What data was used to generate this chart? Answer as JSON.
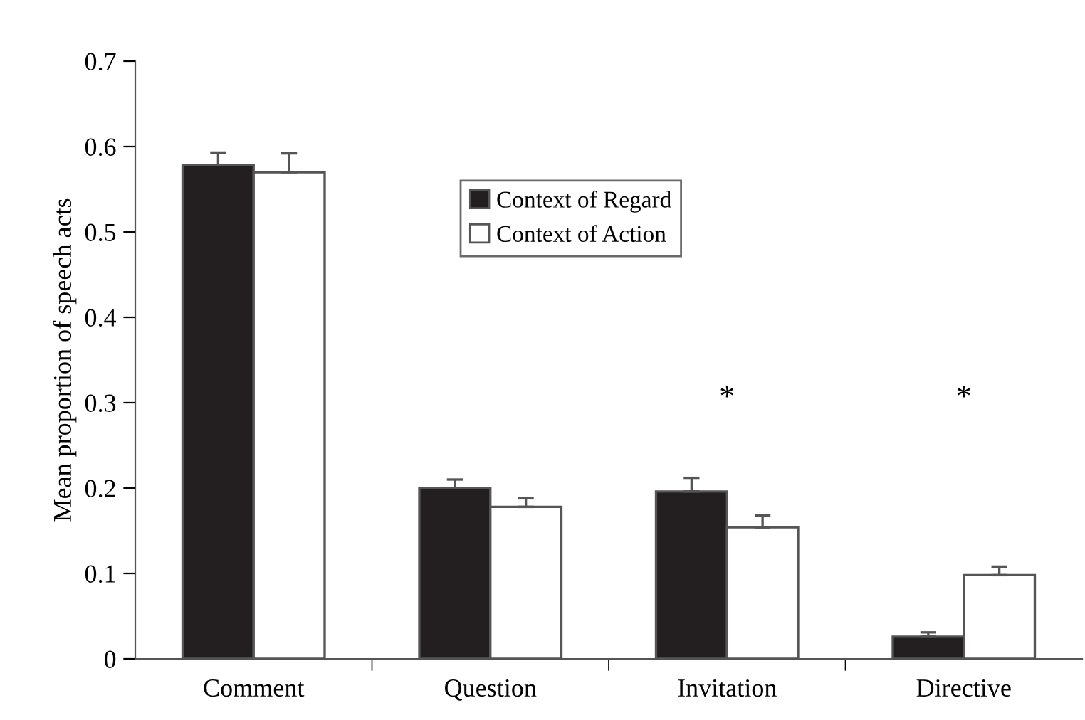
{
  "chart_data": {
    "type": "bar",
    "ylabel": "Mean proportion of speech acts",
    "categories": [
      "Comment",
      "Question",
      "Invitation",
      "Directive"
    ],
    "series": [
      {
        "name": "Context of Regard",
        "color": "#231f20",
        "values": [
          0.578,
          0.2,
          0.196,
          0.026
        ],
        "errors": [
          [
            0.578,
            0.593
          ],
          [
            0.2,
            0.21
          ],
          [
            0.196,
            0.212
          ],
          [
            0.026,
            0.031
          ]
        ]
      },
      {
        "name": "Context of Action",
        "color": "#ffffff",
        "values": [
          0.57,
          0.178,
          0.154,
          0.098
        ],
        "errors": [
          [
            0.57,
            0.592
          ],
          [
            0.178,
            0.188
          ],
          [
            0.154,
            0.168
          ],
          [
            0.098,
            0.108
          ]
        ]
      }
    ],
    "ylim": [
      0,
      0.7
    ],
    "yticks": [
      0,
      0.1,
      0.2,
      0.3,
      0.4,
      0.5,
      0.6,
      0.7
    ],
    "annotations": [
      "*",
      "*"
    ],
    "legend": "top",
    "grid": false
  }
}
